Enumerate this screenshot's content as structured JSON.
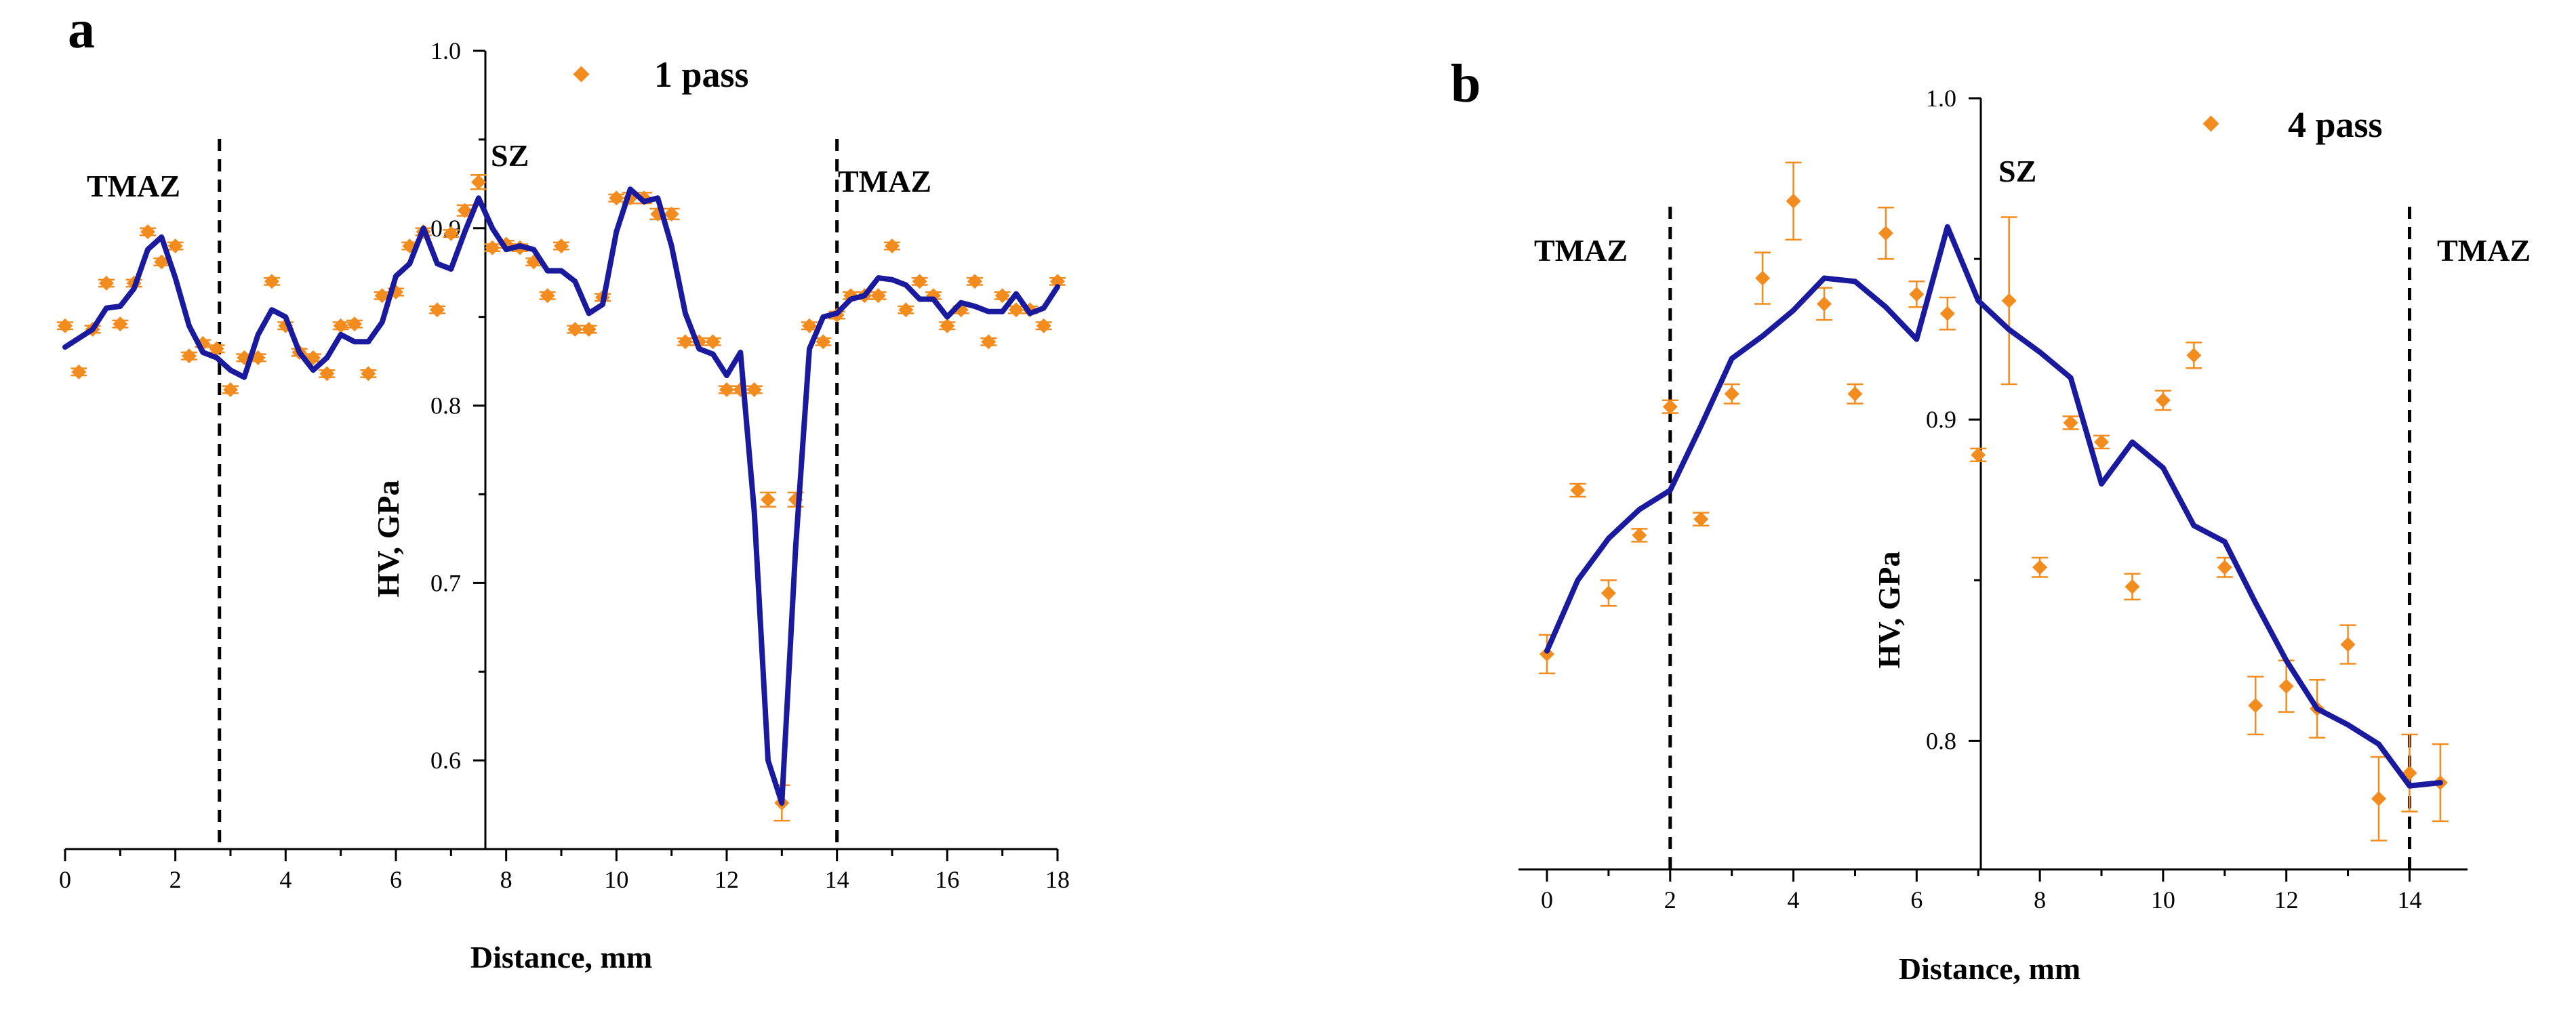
{
  "chart_data": [
    {
      "panel": "a",
      "type": "line+scatter",
      "xlabel": "Distance, mm",
      "ylabel": "HV, GPa",
      "xlim": [
        0,
        18
      ],
      "ylim": [
        0.55,
        1.0
      ],
      "xticks": [
        0,
        2,
        4,
        6,
        8,
        10,
        12,
        14,
        16,
        18
      ],
      "yticks": [
        0.6,
        0.7,
        0.8,
        0.9,
        1.0
      ],
      "ytick_labels": [
        "0.6",
        "0.7",
        "0.8",
        "0.9",
        "1.0"
      ],
      "legend": "1 pass",
      "zone_lines": [
        2.8,
        14
      ],
      "zones": [
        "TMAZ",
        "SZ",
        "TMAZ"
      ],
      "colors": {
        "line": "#1a1a9e",
        "points": "#f28c1e"
      },
      "line": {
        "x": [
          0,
          0.25,
          0.5,
          0.75,
          1.0,
          1.25,
          1.5,
          1.75,
          2.0,
          2.25,
          2.5,
          2.75,
          3.0,
          3.25,
          3.5,
          3.75,
          4.0,
          4.25,
          4.5,
          4.75,
          5.0,
          5.25,
          5.5,
          5.75,
          6.0,
          6.25,
          6.5,
          6.75,
          7.0,
          7.25,
          7.5,
          7.75,
          8.0,
          8.25,
          8.5,
          8.75,
          9.0,
          9.25,
          9.5,
          9.75,
          10.0,
          10.25,
          10.5,
          10.75,
          11.0,
          11.25,
          11.5,
          11.75,
          12.0,
          12.25,
          12.5,
          12.75,
          13.0,
          13.25,
          13.5,
          13.75,
          14.0,
          14.25,
          14.5,
          14.75,
          15.0,
          15.25,
          15.5,
          15.75,
          16.0,
          16.25,
          16.5,
          16.75,
          17.0,
          17.25,
          17.5,
          17.75,
          18.0
        ],
        "y": [
          0.833,
          0.838,
          0.843,
          0.855,
          0.856,
          0.866,
          0.888,
          0.895,
          0.872,
          0.845,
          0.83,
          0.827,
          0.82,
          0.816,
          0.84,
          0.854,
          0.85,
          0.83,
          0.82,
          0.827,
          0.84,
          0.836,
          0.836,
          0.847,
          0.873,
          0.88,
          0.9,
          0.88,
          0.877,
          0.898,
          0.917,
          0.9,
          0.888,
          0.89,
          0.888,
          0.876,
          0.876,
          0.87,
          0.852,
          0.857,
          0.898,
          0.922,
          0.915,
          0.917,
          0.89,
          0.852,
          0.832,
          0.829,
          0.817,
          0.83,
          0.74,
          0.6,
          0.576,
          0.72,
          0.832,
          0.85,
          0.852,
          0.86,
          0.862,
          0.872,
          0.871,
          0.868,
          0.86,
          0.86,
          0.85,
          0.858,
          0.856,
          0.853,
          0.853,
          0.863,
          0.852,
          0.855,
          0.867
        ]
      },
      "points": {
        "x": [
          0,
          0.25,
          0.5,
          0.75,
          1.0,
          1.25,
          1.5,
          1.75,
          2.0,
          2.25,
          2.5,
          2.75,
          3.0,
          3.25,
          3.5,
          3.75,
          4.0,
          4.25,
          4.5,
          4.75,
          5.0,
          5.25,
          5.5,
          5.75,
          6.0,
          6.25,
          6.5,
          6.75,
          7.0,
          7.25,
          7.5,
          7.75,
          8.0,
          8.25,
          8.5,
          8.75,
          9.0,
          9.25,
          9.5,
          9.75,
          10.0,
          10.25,
          10.5,
          10.75,
          11.0,
          11.25,
          11.5,
          11.75,
          12.0,
          12.25,
          12.5,
          12.75,
          13.0,
          13.25,
          13.5,
          13.75,
          14.0,
          14.25,
          14.5,
          14.75,
          15.0,
          15.25,
          15.5,
          15.75,
          16.0,
          16.25,
          16.5,
          16.75,
          17.0,
          17.25,
          17.5,
          17.75,
          18.0
        ],
        "y": [
          0.845,
          0.819,
          0.843,
          0.869,
          0.846,
          0.869,
          0.898,
          0.881,
          0.89,
          0.828,
          0.835,
          0.832,
          0.809,
          0.827,
          0.827,
          0.87,
          0.845,
          0.83,
          0.827,
          0.818,
          0.845,
          0.846,
          0.818,
          0.862,
          0.864,
          0.89,
          0.898,
          0.854,
          0.897,
          0.91,
          0.926,
          0.889,
          0.891,
          0.889,
          0.881,
          0.862,
          0.89,
          0.843,
          0.843,
          0.861,
          0.917,
          0.917,
          0.917,
          0.908,
          0.908,
          0.836,
          0.836,
          0.836,
          0.809,
          0.809,
          0.809,
          0.747,
          0.576,
          0.747,
          0.845,
          0.836,
          0.851,
          0.862,
          0.862,
          0.862,
          0.89,
          0.854,
          0.87,
          0.862,
          0.845,
          0.854,
          0.87,
          0.836,
          0.862,
          0.854,
          0.854,
          0.845,
          0.87
        ],
        "err": [
          0.002,
          0.002,
          0.002,
          0.002,
          0.002,
          0.002,
          0.002,
          0.002,
          0.002,
          0.002,
          0.002,
          0.002,
          0.002,
          0.002,
          0.002,
          0.002,
          0.002,
          0.002,
          0.002,
          0.002,
          0.002,
          0.002,
          0.002,
          0.002,
          0.002,
          0.002,
          0.002,
          0.002,
          0.002,
          0.003,
          0.004,
          0.002,
          0.002,
          0.002,
          0.002,
          0.002,
          0.002,
          0.002,
          0.002,
          0.002,
          0.002,
          0.003,
          0.003,
          0.003,
          0.003,
          0.002,
          0.002,
          0.002,
          0.002,
          0.002,
          0.002,
          0.004,
          0.01,
          0.004,
          0.002,
          0.002,
          0.002,
          0.002,
          0.002,
          0.002,
          0.002,
          0.002,
          0.002,
          0.002,
          0.002,
          0.002,
          0.002,
          0.002,
          0.002,
          0.002,
          0.002,
          0.002,
          0.002
        ]
      }
    },
    {
      "panel": "b",
      "type": "line+scatter",
      "xlabel": "Distance, mm",
      "ylabel": "HV, GPa",
      "xlim": [
        0,
        14.6
      ],
      "ylim": [
        0.76,
        1.0
      ],
      "xticks": [
        0,
        2,
        4,
        6,
        8,
        10,
        12,
        14
      ],
      "yticks": [
        0.8,
        0.9,
        1.0
      ],
      "ytick_labels": [
        "0.8",
        "0.9",
        "1.0"
      ],
      "legend": "4 pass",
      "zone_lines": [
        2,
        14
      ],
      "zones": [
        "TMAZ",
        "SZ",
        "TMAZ"
      ],
      "colors": {
        "line": "#1a1a9e",
        "points": "#f28c1e"
      },
      "line": {
        "x": [
          0,
          0.5,
          1.0,
          1.5,
          2.0,
          2.5,
          3.0,
          3.5,
          4.0,
          4.5,
          5.0,
          5.5,
          6.0,
          6.5,
          7.0,
          7.5,
          8.0,
          8.5,
          9.0,
          9.5,
          10.0,
          10.5,
          11.0,
          11.5,
          12.0,
          12.5,
          13.0,
          13.5,
          14.0,
          14.5
        ],
        "y": [
          0.828,
          0.85,
          0.863,
          0.872,
          0.878,
          0.898,
          0.919,
          0.926,
          0.934,
          0.944,
          0.943,
          0.935,
          0.925,
          0.96,
          0.937,
          0.928,
          0.921,
          0.913,
          0.88,
          0.893,
          0.885,
          0.867,
          0.862,
          0.843,
          0.825,
          0.81,
          0.805,
          0.799,
          0.786,
          0.787
        ]
      },
      "points": {
        "x": [
          0,
          0.5,
          1.0,
          1.5,
          2.0,
          2.5,
          3.0,
          3.5,
          4.0,
          4.5,
          5.0,
          5.5,
          6.0,
          6.5,
          7.0,
          7.5,
          8.0,
          8.5,
          9.0,
          9.5,
          10.0,
          10.5,
          11.0,
          11.5,
          12.0,
          12.5,
          13.0,
          13.5,
          14.0,
          14.5
        ],
        "y": [
          0.827,
          0.878,
          0.846,
          0.864,
          0.904,
          0.869,
          0.908,
          0.944,
          0.968,
          0.936,
          0.908,
          0.958,
          0.939,
          0.933,
          0.889,
          0.937,
          0.854,
          0.899,
          0.893,
          0.848,
          0.906,
          0.92,
          0.854,
          0.811,
          0.817,
          0.81,
          0.83,
          0.782,
          0.79,
          0.787
        ],
        "err": [
          0.006,
          0.002,
          0.004,
          0.002,
          0.002,
          0.002,
          0.003,
          0.008,
          0.012,
          0.005,
          0.003,
          0.008,
          0.004,
          0.005,
          0.002,
          0.026,
          0.003,
          0.002,
          0.002,
          0.004,
          0.003,
          0.004,
          0.003,
          0.009,
          0.008,
          0.009,
          0.006,
          0.013,
          0.012,
          0.012
        ]
      }
    }
  ]
}
